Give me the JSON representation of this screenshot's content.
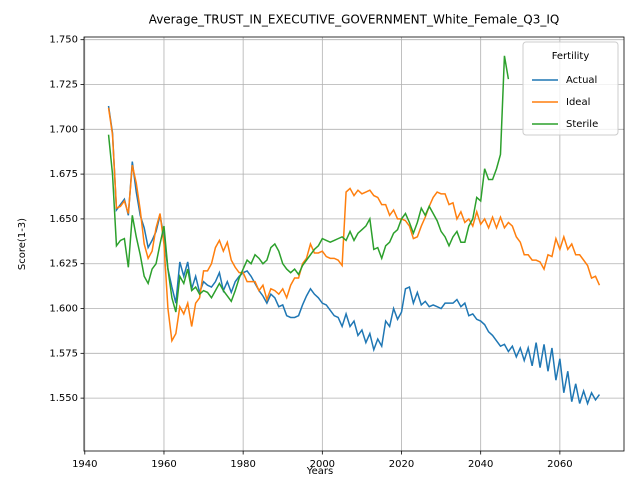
{
  "chart_data": {
    "type": "line",
    "title": "Average_TRUST_IN_EXECUTIVE_GOVERNMENT_White_Female_Q3_IQ",
    "xlabel": "Years",
    "ylabel": "Score(1-3)",
    "legend_title": "Fertility",
    "legend": "upper right",
    "grid": true,
    "xlim": [
      1939.8,
      2076.2
    ],
    "ylim": [
      1.5205,
      1.7515
    ],
    "xticks": [
      1940,
      1960,
      1980,
      2000,
      2020,
      2040,
      2060
    ],
    "yticks": [
      {
        "value": 1.55,
        "label": "1.550"
      },
      1.575,
      {
        "value": 1.6,
        "label": "1.600"
      },
      1.625,
      {
        "value": 1.65,
        "label": "1.650"
      },
      1.675,
      {
        "value": 1.7,
        "label": "1.700"
      },
      1.725,
      {
        "value": 1.75,
        "label": "1.750"
      }
    ],
    "x": [
      1946,
      1947,
      1948,
      1949,
      1950,
      1951,
      1952,
      1953,
      1954,
      1955,
      1956,
      1957,
      1958,
      1959,
      1960,
      1961,
      1962,
      1963,
      1964,
      1965,
      1966,
      1967,
      1968,
      1969,
      1970,
      1971,
      1972,
      1973,
      1974,
      1975,
      1976,
      1977,
      1978,
      1979,
      1980,
      1981,
      1982,
      1983,
      1984,
      1985,
      1986,
      1987,
      1988,
      1989,
      1990,
      1991,
      1992,
      1993,
      1994,
      1995,
      1996,
      1997,
      1998,
      1999,
      2000,
      2001,
      2002,
      2003,
      2004,
      2005,
      2006,
      2007,
      2008,
      2009,
      2010,
      2011,
      2012,
      2013,
      2014,
      2015,
      2016,
      2017,
      2018,
      2019,
      2020,
      2021,
      2022,
      2023,
      2024,
      2025,
      2026,
      2027,
      2028,
      2029,
      2030,
      2031,
      2032,
      2033,
      2034,
      2035,
      2036,
      2037,
      2038,
      2039,
      2040,
      2041,
      2042,
      2043,
      2044,
      2045,
      2046,
      2047,
      2048,
      2049,
      2050,
      2051,
      2052,
      2053,
      2054,
      2055,
      2056,
      2057,
      2058,
      2059,
      2060,
      2061,
      2062,
      2063,
      2064,
      2065,
      2066,
      2067,
      2068,
      2069,
      2070
    ],
    "series": [
      {
        "name": "Actual",
        "color": "#1f77b4",
        "values": [
          1.713,
          1.698,
          1.655,
          1.658,
          1.661,
          1.652,
          1.682,
          1.665,
          1.652,
          1.645,
          1.634,
          1.638,
          1.643,
          1.652,
          1.64,
          1.622,
          1.612,
          1.603,
          1.626,
          1.618,
          1.626,
          1.611,
          1.618,
          1.609,
          1.615,
          1.613,
          1.612,
          1.615,
          1.62,
          1.61,
          1.615,
          1.609,
          1.615,
          1.618,
          1.62,
          1.621,
          1.618,
          1.614,
          1.61,
          1.607,
          1.603,
          1.608,
          1.606,
          1.601,
          1.602,
          1.596,
          1.595,
          1.595,
          1.596,
          1.602,
          1.607,
          1.611,
          1.608,
          1.606,
          1.603,
          1.602,
          1.599,
          1.596,
          1.595,
          1.59,
          1.597,
          1.59,
          1.593,
          1.585,
          1.588,
          1.581,
          1.586,
          1.577,
          1.583,
          1.579,
          1.593,
          1.59,
          1.6,
          1.594,
          1.598,
          1.611,
          1.612,
          1.603,
          1.609,
          1.602,
          1.604,
          1.601,
          1.602,
          1.601,
          1.6,
          1.603,
          1.603,
          1.603,
          1.605,
          1.601,
          1.603,
          1.596,
          1.597,
          1.594,
          1.593,
          1.591,
          1.587,
          1.585,
          1.582,
          1.579,
          1.58,
          1.576,
          1.579,
          1.573,
          1.578,
          1.571,
          1.578,
          1.568,
          1.581,
          1.567,
          1.58,
          1.565,
          1.578,
          1.56,
          1.572,
          1.553,
          1.565,
          1.548,
          1.558,
          1.547,
          1.554,
          1.547,
          1.553,
          1.549,
          1.552
        ]
      },
      {
        "name": "Ideal",
        "color": "#ff7f0e",
        "values": [
          1.712,
          1.697,
          1.656,
          1.657,
          1.66,
          1.653,
          1.68,
          1.67,
          1.655,
          1.636,
          1.628,
          1.632,
          1.645,
          1.653,
          1.636,
          1.6,
          1.582,
          1.586,
          1.601,
          1.597,
          1.603,
          1.59,
          1.603,
          1.606,
          1.621,
          1.621,
          1.625,
          1.634,
          1.638,
          1.632,
          1.637,
          1.627,
          1.623,
          1.62,
          1.62,
          1.615,
          1.615,
          1.615,
          1.61,
          1.613,
          1.605,
          1.611,
          1.61,
          1.608,
          1.611,
          1.606,
          1.613,
          1.617,
          1.617,
          1.625,
          1.628,
          1.636,
          1.631,
          1.631,
          1.632,
          1.629,
          1.628,
          1.628,
          1.627,
          1.624,
          1.665,
          1.667,
          1.663,
          1.666,
          1.664,
          1.665,
          1.666,
          1.663,
          1.662,
          1.658,
          1.658,
          1.652,
          1.655,
          1.65,
          1.65,
          1.649,
          1.646,
          1.639,
          1.64,
          1.646,
          1.651,
          1.657,
          1.662,
          1.665,
          1.664,
          1.664,
          1.658,
          1.659,
          1.65,
          1.654,
          1.648,
          1.65,
          1.646,
          1.654,
          1.647,
          1.65,
          1.645,
          1.651,
          1.645,
          1.651,
          1.645,
          1.648,
          1.646,
          1.64,
          1.637,
          1.63,
          1.63,
          1.627,
          1.627,
          1.626,
          1.622,
          1.63,
          1.629,
          1.639,
          1.633,
          1.64,
          1.633,
          1.636,
          1.63,
          1.63,
          1.627,
          1.624,
          1.617,
          1.618,
          1.613
        ]
      },
      {
        "name": "Sterile",
        "color": "#2ca02c",
        "values": [
          1.697,
          1.675,
          1.635,
          1.638,
          1.639,
          1.623,
          1.652,
          1.64,
          1.63,
          1.618,
          1.614,
          1.622,
          1.625,
          1.636,
          1.646,
          1.622,
          1.606,
          1.598,
          1.618,
          1.614,
          1.622,
          1.61,
          1.612,
          1.608,
          1.61,
          1.609,
          1.606,
          1.61,
          1.614,
          1.61,
          1.607,
          1.604,
          1.61,
          1.617,
          1.622,
          1.627,
          1.625,
          1.63,
          1.628,
          1.625,
          1.627,
          1.634,
          1.636,
          1.632,
          1.625,
          1.622,
          1.62,
          1.622,
          1.619,
          1.624,
          1.627,
          1.63,
          1.633,
          1.635,
          1.639,
          1.638,
          1.637,
          1.638,
          1.639,
          1.64,
          1.638,
          1.643,
          1.638,
          1.642,
          1.644,
          1.646,
          1.65,
          1.633,
          1.634,
          1.628,
          1.635,
          1.637,
          1.642,
          1.644,
          1.65,
          1.653,
          1.648,
          1.642,
          1.648,
          1.656,
          1.652,
          1.657,
          1.653,
          1.649,
          1.643,
          1.64,
          1.635,
          1.64,
          1.643,
          1.637,
          1.637,
          1.646,
          1.65,
          1.662,
          1.66,
          1.678,
          1.672,
          1.672,
          1.678,
          1.686,
          1.741,
          1.728,
          null,
          null,
          null,
          null,
          null,
          null,
          null,
          null,
          null,
          null,
          null,
          null,
          null,
          null,
          null,
          null,
          null,
          null,
          null,
          null,
          null,
          null,
          null
        ]
      }
    ]
  }
}
